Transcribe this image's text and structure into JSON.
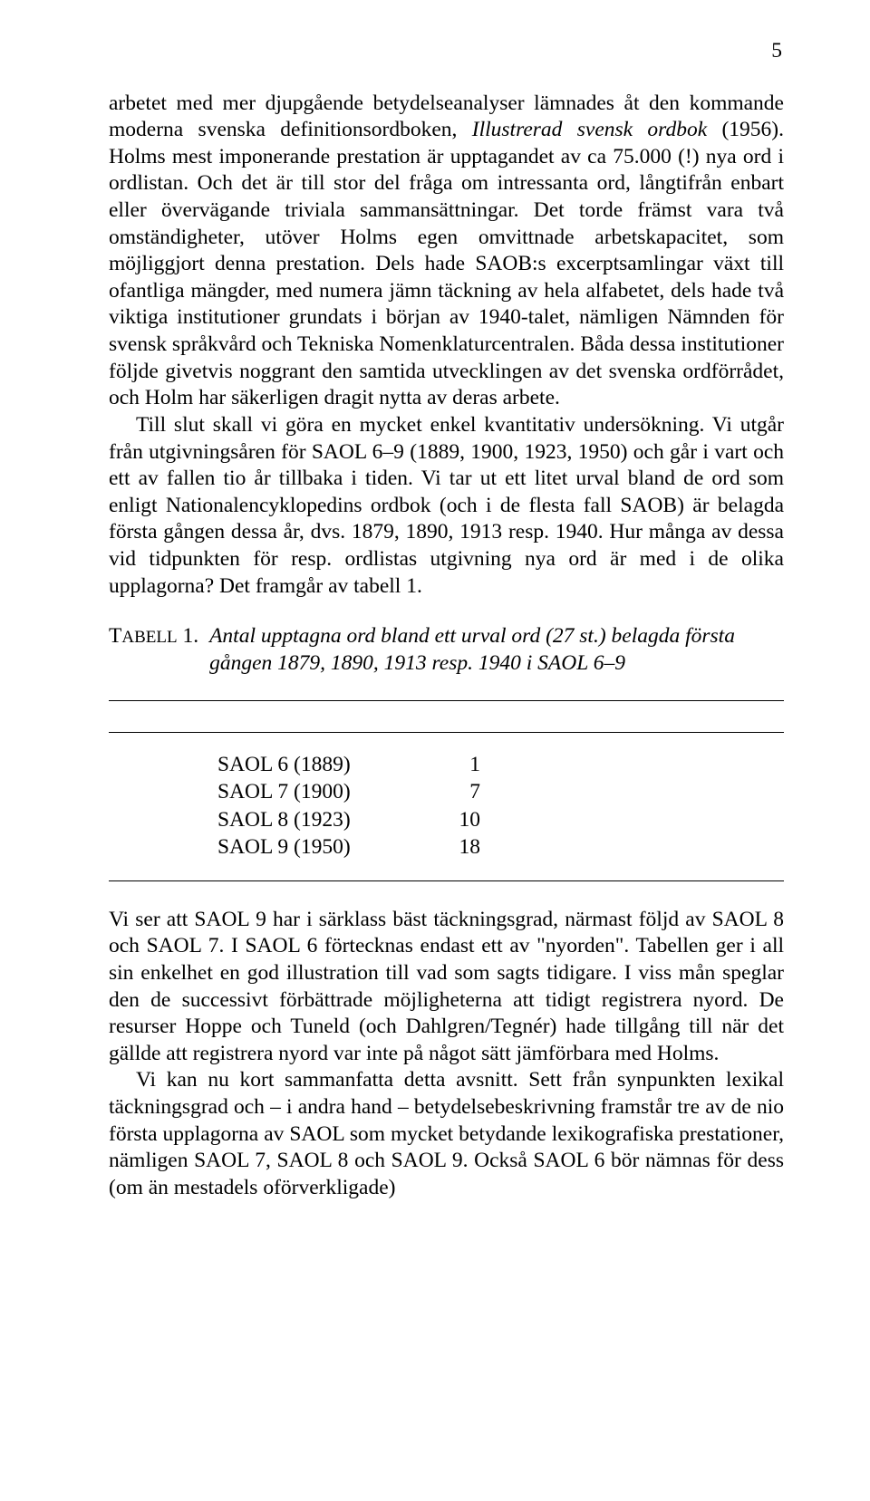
{
  "page_number": "5",
  "para1_part1": "arbetet med mer djupgående betydelseanalyser lämnades åt den kommande moderna svenska definitionsordboken, ",
  "para1_italic1": "Illustrerad svensk ordbok",
  "para1_part2": " (1956). Holms mest imponerande prestation är upptagandet av ca 75.000 (!) nya ord i ordlistan. Och det är till stor del fråga om intressanta ord, långtifrån enbart eller övervägande triviala sammansättningar. Det torde främst vara två omständigheter, utöver Holms egen omvittnade arbetskapacitet, som möjliggjort denna prestation. Dels hade SAOB:s excerptsamlingar växt till ofantliga mängder, med numera jämn täckning av hela alfabetet, dels hade två viktiga institutioner grundats i början av 1940-talet, nämligen Nämnden för svensk språkvård och Tekniska Nomenklaturcentralen. Båda dessa institutioner följde givetvis noggrant den samtida utvecklingen av det svenska ordförrådet, och Holm har säkerligen dragit nytta av deras arbete.",
  "para2": "Till slut skall vi göra en mycket enkel kvantitativ undersökning. Vi utgår från utgivningsåren för SAOL 6–9 (1889, 1900, 1923, 1950) och går i vart och ett av fallen tio år tillbaka i tiden. Vi tar ut ett litet urval bland de ord som enligt Nationalencyklopedins ordbok (och i de flesta fall SAOB) är belagda första gången dessa år, dvs. 1879, 1890, 1913 resp. 1940. Hur många av dessa vid tidpunkten för resp. ordlistas utgivning nya ord är med i de olika upplagorna? Det framgår av tabell 1.",
  "table1": {
    "label_prefix": "T",
    "label_rest": "ABELL",
    "label_num": " 1.",
    "caption": "Antal upptagna ord bland ett urval ord (27 st.) belagda första gången 1879, 1890, 1913 resp. 1940 i SAOL 6–9",
    "rows": [
      {
        "label": "SAOL 6 (1889)",
        "value": "1"
      },
      {
        "label": "SAOL 7 (1900)",
        "value": "7"
      },
      {
        "label": "SAOL 8 (1923)",
        "value": "10"
      },
      {
        "label": "SAOL 9 (1950)",
        "value": "18"
      }
    ]
  },
  "para3": "Vi ser att SAOL 9 har i särklass bäst täckningsgrad, närmast följd av SAOL 8 och SAOL 7. I SAOL 6 förtecknas endast ett av \"nyorden\". Tabellen ger i all sin enkelhet en god illustration till vad som sagts tidigare. I viss mån speglar den de successivt förbättrade möjligheterna att tidigt registrera nyord. De resurser Hoppe och Tuneld (och Dahlgren/Tegnér) hade tillgång till när det gällde att registrera nyord var inte på något sätt jämförbara med Holms.",
  "para4": "Vi kan nu kort sammanfatta detta avsnitt. Sett från synpunkten lexikal täckningsgrad och – i andra hand – betydelsebeskrivning framstår tre av de nio första upplagorna av SAOL som mycket betydande lexikografiska prestationer, nämligen SAOL 7, SAOL 8 och SAOL 9. Också SAOL 6 bör nämnas för dess (om än mestadels oförverkligade)"
}
